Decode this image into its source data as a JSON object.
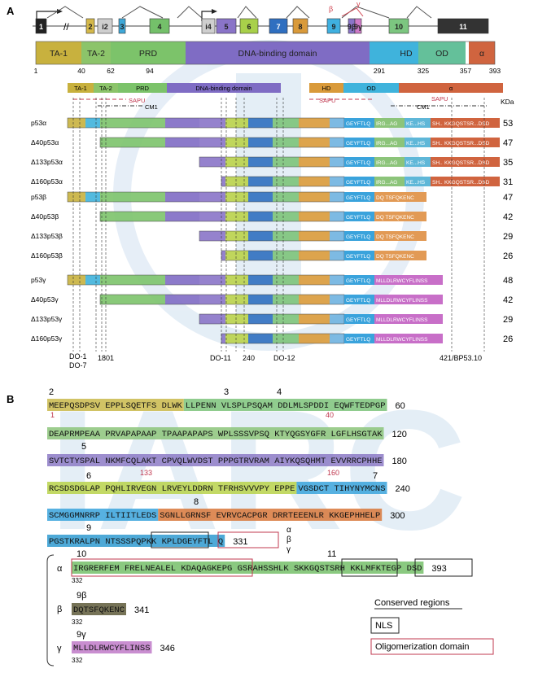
{
  "panelA": {
    "label": "A",
    "exons": [
      {
        "text": "1",
        "color": "#222222",
        "fg": "#ffffff"
      },
      {
        "text": "2",
        "color": "#d4b84a",
        "fg": "#222"
      },
      {
        "text": "i2",
        "color": "#cfcfcf",
        "fg": "#222"
      },
      {
        "text": "3",
        "color": "#3fa8d8",
        "fg": "#222"
      },
      {
        "text": "4",
        "color": "#74c06a",
        "fg": "#222"
      },
      {
        "text": "i4",
        "color": "#cfcfcf",
        "fg": "#222"
      },
      {
        "text": "5",
        "color": "#8a74c8",
        "fg": "#222"
      },
      {
        "text": "6",
        "color": "#a8d04a",
        "fg": "#222"
      },
      {
        "text": "7",
        "color": "#2f6fc0",
        "fg": "#ffffff"
      },
      {
        "text": "8",
        "color": "#d99a3a",
        "fg": "#222"
      },
      {
        "text": "9",
        "color": "#3fb0e0",
        "fg": "#222"
      },
      {
        "text": "9β",
        "color": "#8a74c8",
        "fg": "#222"
      },
      {
        "text": "9γ",
        "color": "#cf7bc8",
        "fg": "#222"
      },
      {
        "text": "10",
        "color": "#7cc680",
        "fg": "#222"
      },
      {
        "text": "11",
        "color": "#333333",
        "fg": "#ffffff"
      }
    ],
    "splice_labels": {
      "beta": "β",
      "gamma": "γ"
    },
    "domains": [
      {
        "text": "TA-1",
        "color": "#c8b13e"
      },
      {
        "text": "TA-2",
        "color": "#8cc46a"
      },
      {
        "text": "PRD",
        "color": "#7cc36a"
      },
      {
        "text": "DNA-binding domain",
        "color": "#7f6cc4"
      },
      {
        "text": "HD",
        "color": "#3fb3dc"
      },
      {
        "text": "OD",
        "color": "#64c09a"
      },
      {
        "text": "α",
        "color": "#d0643f"
      }
    ],
    "positions": [
      "1",
      "40",
      "62",
      "94",
      "291",
      "325",
      "357",
      "393"
    ],
    "mini_domains": [
      "TA-1",
      "TA-2",
      "PRD",
      "DNA-binding domain",
      "HD",
      "OD",
      "α"
    ],
    "region_labels": {
      "sapu": "SAPU",
      "cm1": "CM1",
      "kda": "KDa"
    },
    "isoform_groups": [
      {
        "isoforms": [
          {
            "name": "p53α",
            "kda": "53"
          },
          {
            "name": "Δ40p53α",
            "kda": "47"
          },
          {
            "name": "Δ133p53α",
            "kda": "35"
          },
          {
            "name": "Δ160p53α",
            "kda": "31"
          }
        ],
        "c_term": "alpha"
      },
      {
        "isoforms": [
          {
            "name": "p53β",
            "kda": "47"
          },
          {
            "name": "Δ40p53β",
            "kda": "42"
          },
          {
            "name": "Δ133p53β",
            "kda": "29"
          },
          {
            "name": "Δ160p53β",
            "kda": "26"
          }
        ],
        "c_term": "beta"
      },
      {
        "isoforms": [
          {
            "name": "p53γ",
            "kda": "48"
          },
          {
            "name": "Δ40p53γ",
            "kda": "42"
          },
          {
            "name": "Δ133p53γ",
            "kda": "29"
          },
          {
            "name": "Δ160p53γ",
            "kda": "26"
          }
        ],
        "c_term": "gamma"
      }
    ],
    "cterm_text": {
      "alpha": [
        "GEYFTLQ",
        "IRG...AG",
        "KE...HS",
        "SH...",
        "KKGQSTSR...DSD"
      ],
      "beta": [
        "GEYFTLQ",
        "DQ TSFQKENC"
      ],
      "gamma": [
        "GEYFTLQ",
        "MLLDLRWCYFLINSS"
      ]
    },
    "antibodies": [
      "DO-1",
      "DO-7",
      "1801",
      "DO-11",
      "240",
      "DO-12",
      "421/BP53.10"
    ]
  },
  "panelB": {
    "label": "B",
    "rows": [
      {
        "segments": [
          {
            "text": "MEEPQSDPSV EPPLSQETFS DLWK",
            "color": "#c9b84a"
          },
          {
            "text": "LLPENN VLSPLPSQAM DDLMLSPDDI EQWFTEDPGP",
            "color": "#7cc37a"
          }
        ],
        "end": "60"
      },
      {
        "segments": [
          {
            "text": "DEAPRMPEAA PRVAPAPAAP TPAAPAPAPS WPLSSSVPSQ KTYQGSYGFR LGFLHSGTAK",
            "color": "#8cc47a"
          }
        ],
        "end": "120"
      },
      {
        "segments": [
          {
            "text": "SVTCTYSPAL NKMFCQLAKT CPVQLWVDST PPPGTRVRAM AIYKQSQHMT EVVRRCPHHE",
            "color": "#8c7ac6"
          }
        ],
        "end": "180"
      },
      {
        "segments": [
          {
            "text": "RCSDSDGLAP PQHLIRVEGN LRVEYLDDRN TFRHSVVVPY EPPE",
            "color": "#b9d24a"
          },
          {
            "text": "VGSDCT TIHYNYMCNS",
            "color": "#3aa3dc"
          }
        ],
        "end": "240"
      },
      {
        "segments": [
          {
            "text": "SCMGGMNRRP ILTIITLEDS",
            "color": "#3aa3dc"
          },
          {
            "text": "SGNLLGRNSF EVRVCACPGR DRRTEEENLR KKGEPHHELP",
            "color": "#d8773a"
          }
        ],
        "end": "300"
      },
      {
        "segments": [
          {
            "text": "PGSTKRALPN NTSSSPQPKK KPLDGEYFTL Q",
            "color": "#2f9ad0"
          }
        ],
        "end": "331"
      },
      {
        "segments": [
          {
            "text": "IRGRERFEM FRELNEALEL KDAQAGKEPG GSRAHSSHLK SKKGQSTSRH KKLMFKTEGP DSD",
            "color": "#76c06a"
          }
        ],
        "end": "393",
        "start": "332"
      },
      {
        "segments": [
          {
            "text": "DQTSFQKENC",
            "color": "#5e5a3a"
          }
        ],
        "start": "332",
        "end": "341"
      },
      {
        "segments": [
          {
            "text": "MLLDLRWCYFLINSS",
            "color": "#c07ac8"
          }
        ],
        "start": "332",
        "end": "346"
      }
    ],
    "exon_numbers": [
      "2",
      "3",
      "4",
      "5",
      "6",
      "7",
      "8",
      "9",
      "10",
      "11",
      "9β",
      "9γ"
    ],
    "met_markers": [
      "1",
      "40",
      "133",
      "160"
    ],
    "greek": {
      "alpha": "α",
      "beta": "β",
      "gamma": "γ"
    },
    "legend": {
      "conserved": "Conserved regions",
      "nls": "NLS",
      "oligo": "Oligomerization domain"
    }
  }
}
